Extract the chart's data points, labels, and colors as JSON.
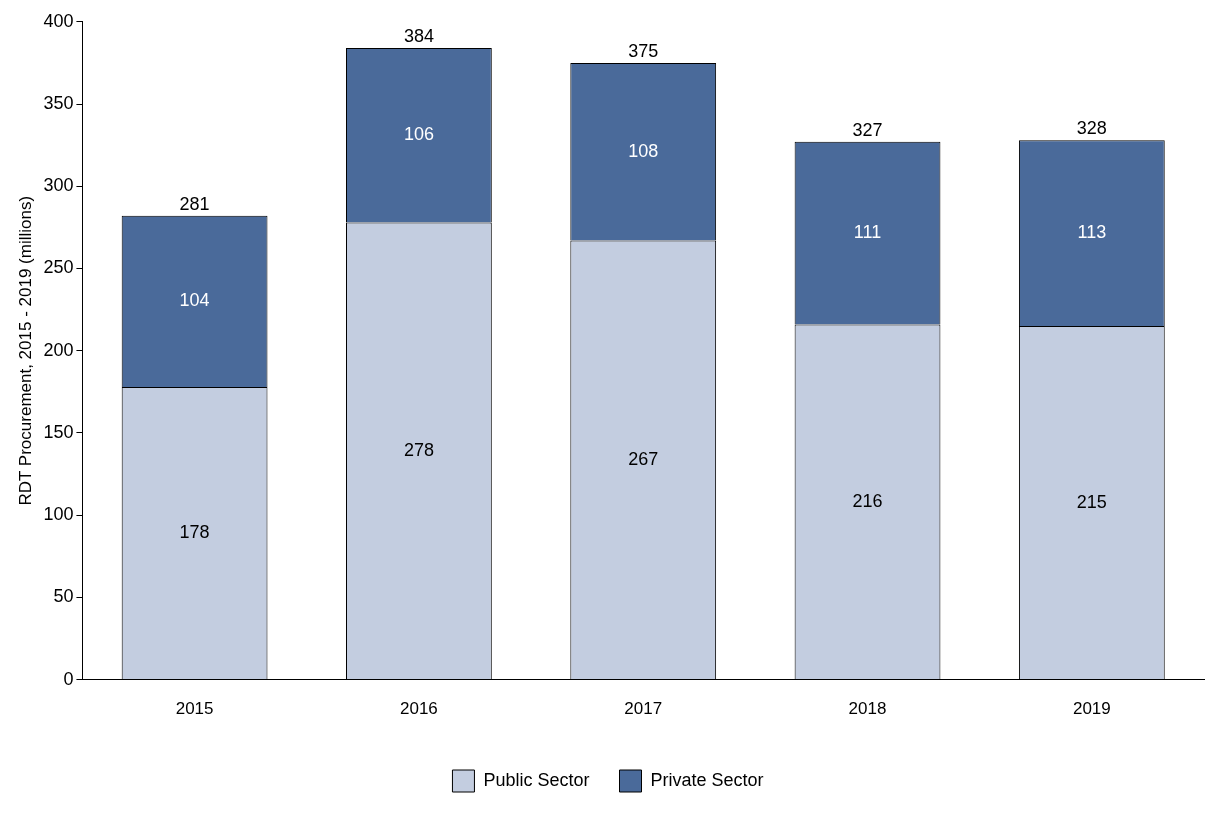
{
  "chart_data": {
    "type": "bar",
    "ylabel": "RDT Procurement, 2015 - 2019 (millions)",
    "categories": [
      "2015",
      "2016",
      "2017",
      "2018",
      "2019"
    ],
    "series": [
      {
        "name": "Public Sector",
        "color": "#c3cde0",
        "values": [
          178,
          278,
          267,
          216,
          215
        ]
      },
      {
        "name": "Private Sector",
        "color": "#4a6a9a",
        "values": [
          104,
          106,
          108,
          111,
          113
        ]
      }
    ],
    "stacked": true,
    "ylim": [
      0,
      400
    ],
    "yticks": [
      0,
      50,
      100,
      150,
      200,
      250,
      300,
      350,
      400
    ],
    "grid": false,
    "legend": "bottom",
    "data_labels": true,
    "totals": [
      "281",
      "384",
      "375",
      "327",
      "328"
    ]
  }
}
